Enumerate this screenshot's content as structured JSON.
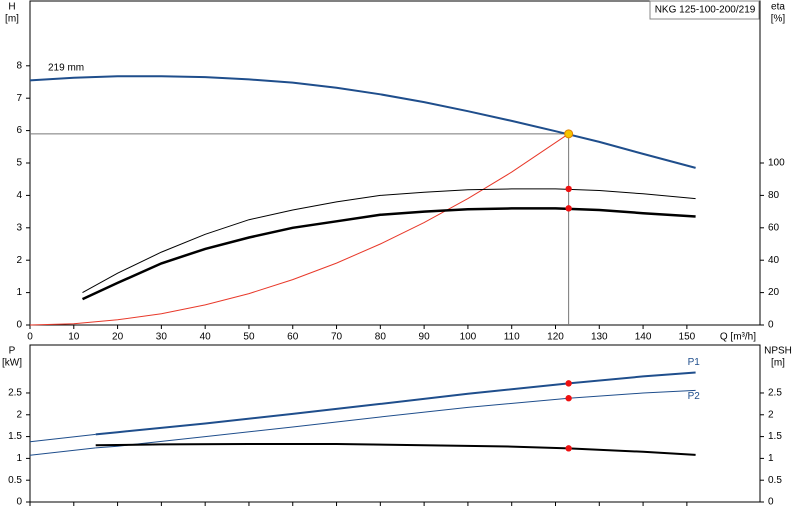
{
  "chart_data": [
    {
      "type": "line",
      "title": "NKG 125-100-200/219",
      "y_label": "H",
      "y_unit": "[m]",
      "y2_label": "eta",
      "y2_unit": "[%]",
      "x_label": "Q [m³/h]",
      "annotation": "219 mm",
      "xlim": [
        0,
        166.7
      ],
      "xticks": [
        0,
        10,
        20,
        30,
        40,
        50,
        60,
        70,
        80,
        90,
        100,
        110,
        120,
        130,
        140,
        150
      ],
      "ylim": [
        0,
        10
      ],
      "yticks": [
        0,
        1,
        2,
        3,
        4,
        5,
        6,
        7,
        8
      ],
      "y2lim": [
        0,
        200
      ],
      "y2ticks": [
        0,
        20,
        40,
        60,
        80,
        100
      ],
      "series": [
        {
          "color": "#1f4e8c",
          "width": 2,
          "x": [
            0,
            10,
            20,
            30,
            40,
            50,
            60,
            70,
            80,
            90,
            100,
            110,
            120,
            130,
            140,
            152
          ],
          "values": [
            7.55,
            7.63,
            7.68,
            7.68,
            7.65,
            7.58,
            7.48,
            7.32,
            7.12,
            6.88,
            6.6,
            6.3,
            5.98,
            5.65,
            5.28,
            4.85
          ]
        },
        {
          "color": "#e8392a",
          "width": 1,
          "x": [
            0,
            10,
            20,
            30,
            40,
            50,
            60,
            70,
            80,
            90,
            100,
            110,
            123
          ],
          "values": [
            0,
            0.04,
            0.16,
            0.35,
            0.62,
            0.97,
            1.4,
            1.91,
            2.5,
            3.16,
            3.9,
            4.72,
            5.9
          ]
        },
        {
          "color": "#000000",
          "width": 1,
          "axis": "y2",
          "x": [
            12,
            20,
            30,
            40,
            50,
            60,
            70,
            80,
            90,
            100,
            110,
            120,
            130,
            140,
            152
          ],
          "values": [
            20,
            32,
            45,
            56,
            65,
            71,
            76,
            80,
            82,
            83.5,
            84,
            84,
            83,
            81,
            78
          ]
        },
        {
          "color": "#000000",
          "width": 2.5,
          "axis": "y2",
          "x": [
            12,
            20,
            30,
            40,
            50,
            60,
            70,
            80,
            90,
            100,
            110,
            120,
            130,
            140,
            152
          ],
          "values": [
            16,
            26,
            38,
            47,
            54,
            60,
            64,
            68,
            70,
            71.5,
            72,
            72,
            71,
            69,
            67
          ]
        }
      ],
      "markers": [
        {
          "x": 123,
          "y": 5.9,
          "color": "#f5c400"
        },
        {
          "x": 123,
          "y": 84,
          "axis": "y2",
          "color": "#ee1111"
        },
        {
          "x": 123,
          "y": 72,
          "axis": "y2",
          "color": "#ee1111"
        }
      ]
    },
    {
      "type": "line",
      "y_label": "P",
      "y_unit": "[kW]",
      "y2_label": "NPSH",
      "y2_unit": "[m]",
      "xlim": [
        0,
        166.7
      ],
      "ylim": [
        0,
        3.6
      ],
      "yticks": [
        0.0,
        0.5,
        1.0,
        1.5,
        2.0,
        2.5
      ],
      "y2lim": [
        0,
        3.6
      ],
      "y2ticks": [
        0.0,
        0.5,
        1.0,
        1.5,
        2.0,
        2.5
      ],
      "series": [
        {
          "name": "P1",
          "color": "#1f4e8c",
          "width": 2,
          "x": [
            15,
            20,
            40,
            60,
            80,
            100,
            123,
            140,
            152
          ],
          "values": [
            1.55,
            1.6,
            1.8,
            2.02,
            2.25,
            2.48,
            2.72,
            2.88,
            2.97
          ]
        },
        {
          "name": "P2",
          "color": "#1f4e8c",
          "width": 1,
          "x": [
            15,
            20,
            40,
            60,
            80,
            100,
            123,
            140,
            152
          ],
          "values": [
            1.24,
            1.28,
            1.5,
            1.72,
            1.95,
            2.17,
            2.38,
            2.5,
            2.56
          ]
        },
        {
          "color": "#000000",
          "width": 2,
          "axis": "y2",
          "x": [
            15,
            30,
            50,
            70,
            90,
            110,
            123,
            140,
            152
          ],
          "values": [
            1.3,
            1.32,
            1.33,
            1.33,
            1.3,
            1.27,
            1.23,
            1.15,
            1.08
          ]
        }
      ],
      "extensions": [
        {
          "color": "#1f4e8c",
          "x": [
            0,
            15
          ],
          "values": [
            1.38,
            1.55
          ]
        },
        {
          "color": "#1f4e8c",
          "x": [
            0,
            15
          ],
          "values": [
            1.07,
            1.24
          ]
        }
      ],
      "markers": [
        {
          "x": 123,
          "y": 2.72,
          "color": "#ee1111"
        },
        {
          "x": 123,
          "y": 2.38,
          "color": "#ee1111"
        },
        {
          "x": 123,
          "y": 1.23,
          "axis": "y2",
          "color": "#ee1111"
        }
      ]
    }
  ]
}
